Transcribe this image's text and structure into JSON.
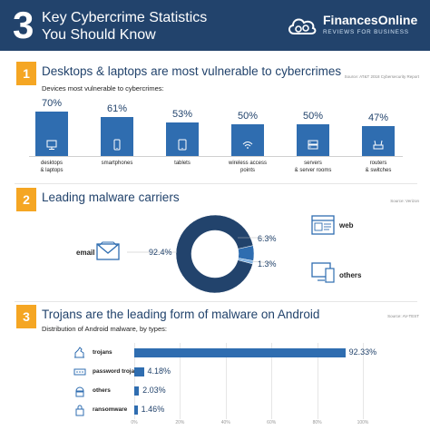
{
  "header": {
    "number": "3",
    "title_line1": "Key Cybercrime Statistics",
    "title_line2": "You Should Know",
    "logo_name": "FinancesOnline",
    "logo_tagline": "REVIEWS FOR BUSINESS"
  },
  "colors": {
    "header_bg": "#22436c",
    "accent": "#f5a623",
    "bar": "#2f6db0",
    "dark_blue": "#22436c"
  },
  "sections": [
    {
      "number": "1",
      "title": "Desktops & laptops are most vulnerable to cybercrimes",
      "source": "Source: AT&T 2018 Cybersecurity Report",
      "subtitle": "Devices most vulnerable to cybercrimes:"
    },
    {
      "number": "2",
      "title": "Leading malware carriers",
      "source": "Source: Verizon"
    },
    {
      "number": "3",
      "title": "Trojans are the leading form of malware on Android",
      "source": "Source: AV-TEST",
      "subtitle": "Distribution of Android malware, by types:"
    }
  ],
  "chart_data": [
    {
      "type": "bar",
      "title": "Devices most vulnerable to cybercrimes:",
      "categories": [
        [
          "desktops",
          "& laptops"
        ],
        [
          "smartphones"
        ],
        [
          "tablets"
        ],
        [
          "wireless access",
          "points"
        ],
        [
          "servers",
          "& server rooms"
        ],
        [
          "routers",
          "& switches"
        ]
      ],
      "icons": [
        "monitor-icon",
        "smartphone-icon",
        "tablet-icon",
        "wifi-icon",
        "server-icon",
        "router-icon"
      ],
      "values": [
        70,
        61,
        53,
        50,
        50,
        47
      ],
      "value_labels": [
        "70%",
        "61%",
        "53%",
        "50%",
        "50%",
        "47%"
      ],
      "ylim": [
        0,
        100
      ]
    },
    {
      "type": "pie",
      "title": "Leading malware carriers",
      "slices": [
        {
          "label": "email",
          "value": 92.4,
          "value_label": "92.4%",
          "icon": "envelope-icon"
        },
        {
          "label": "web",
          "value": 6.3,
          "value_label": "6.3%",
          "icon": "browser-icon"
        },
        {
          "label": "others",
          "value": 1.3,
          "value_label": "1.3%",
          "icon": "devices-icon"
        }
      ]
    },
    {
      "type": "bar",
      "orientation": "horizontal",
      "title": "Distribution of Android malware, by types:",
      "categories": [
        "trojans",
        "password trojans",
        "others",
        "ransomware"
      ],
      "icons": [
        "trojan-horse-icon",
        "password-icon",
        "android-icon",
        "ransomware-icon"
      ],
      "values": [
        92.33,
        4.18,
        2.03,
        1.46
      ],
      "value_labels": [
        "92.33%",
        "4.18%",
        "2.03%",
        "1.46%"
      ],
      "xlim": [
        0,
        100
      ],
      "xticks": [
        "0%",
        "20%",
        "40%",
        "60%",
        "80%",
        "100%"
      ]
    }
  ]
}
